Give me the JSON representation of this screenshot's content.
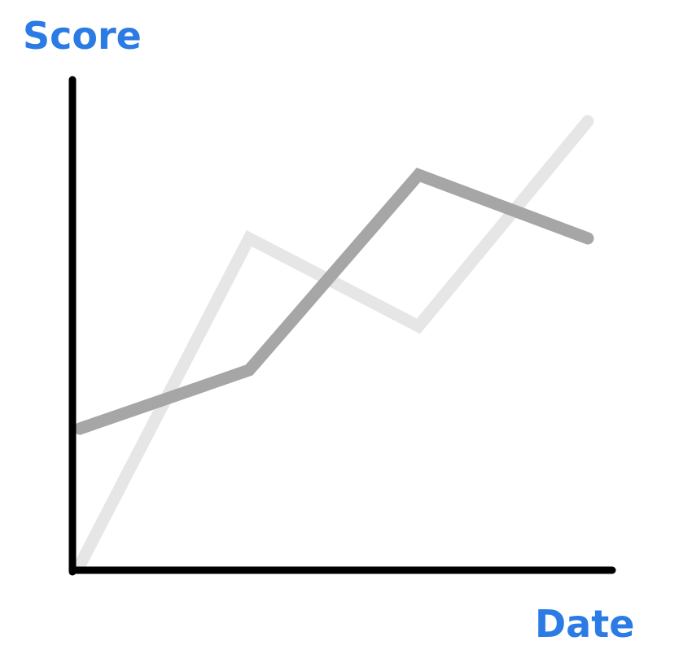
{
  "chart_data": {
    "type": "line",
    "title": "",
    "xlabel": "Date",
    "ylabel": "Score",
    "x": [
      0,
      1,
      2,
      3
    ],
    "xlim": [
      0,
      3
    ],
    "ylim": [
      0,
      100
    ],
    "series": [
      {
        "values": [
          0,
          67,
          49,
          91
        ],
        "color": "#e6e6e6"
      },
      {
        "values": [
          28,
          40,
          80,
          67
        ],
        "color": "#a6a6a6"
      }
    ],
    "grid": false,
    "axis_color": "#000000",
    "label_color": "#2b7be4"
  }
}
